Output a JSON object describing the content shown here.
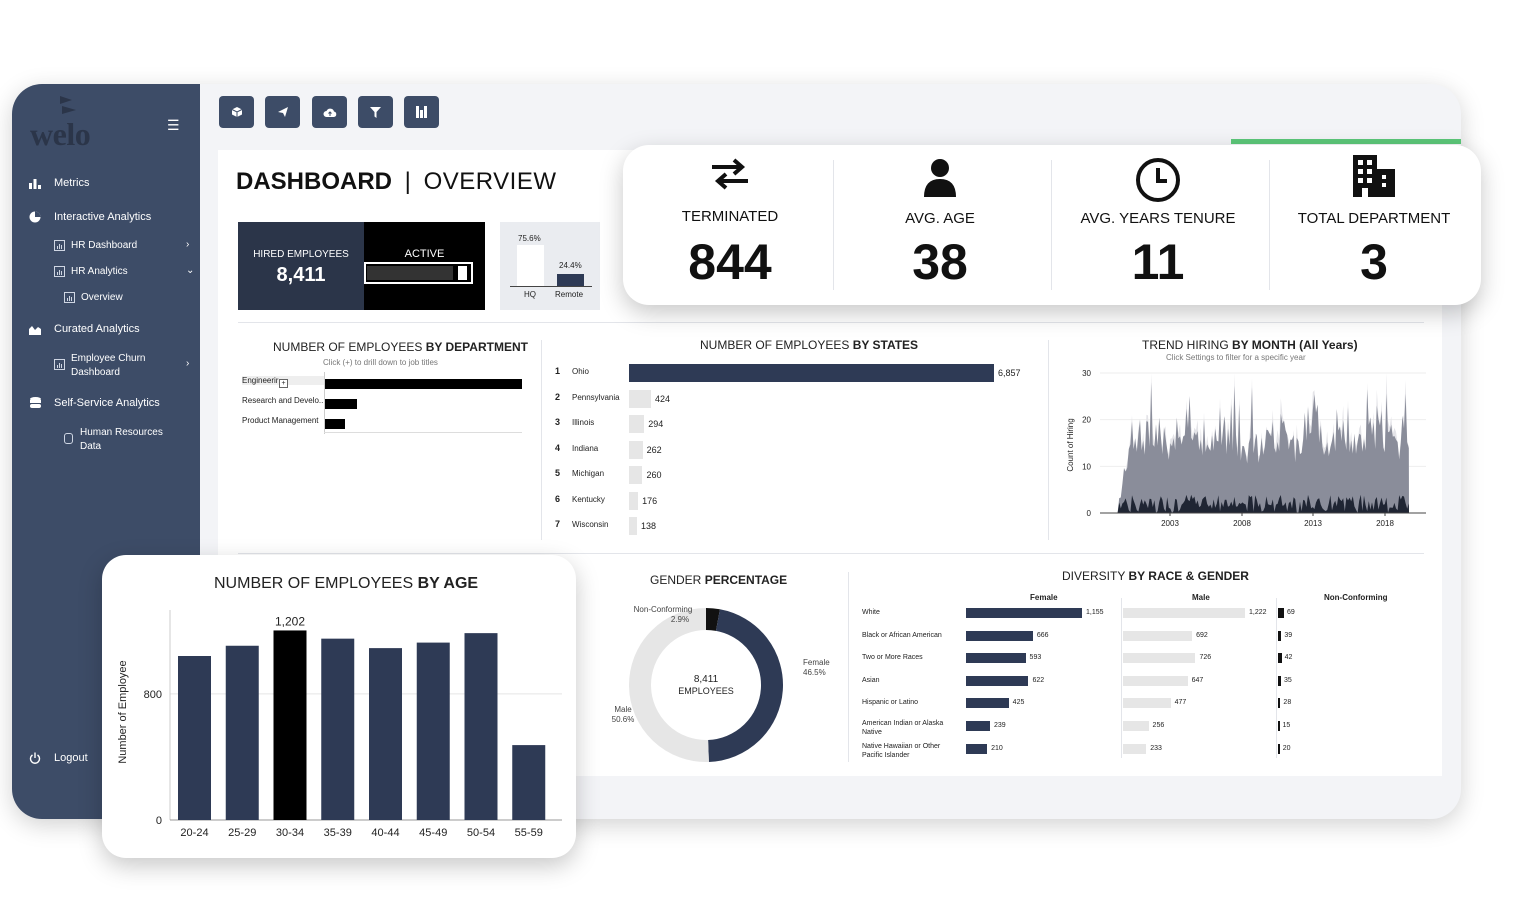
{
  "logo": {
    "text": "welo"
  },
  "toolbar": {
    "buttons": [
      "cube-icon",
      "send-icon",
      "cloud-icon",
      "filter-icon",
      "columns-icon"
    ]
  },
  "sidebar": {
    "items": [
      {
        "label": "Metrics",
        "icon": "bar-chart-icon"
      },
      {
        "label": "Interactive Analytics",
        "icon": "pie-chart-icon"
      },
      {
        "label": "HR Dashboard"
      },
      {
        "label": "HR Analytics"
      },
      {
        "label": "Overview"
      },
      {
        "label": "Curated Analytics",
        "icon": "area-chart-icon"
      },
      {
        "label": "Employee Churn",
        "label2": "Dashboard"
      },
      {
        "label": "Self-Service Analytics",
        "icon": "database-icon"
      },
      {
        "label": "Human Resources",
        "label2": "Data"
      }
    ],
    "logout": "Logout"
  },
  "dashboard": {
    "title": "DASHBOARD",
    "sep": "|",
    "subtitle": "OVERVIEW"
  },
  "hired": {
    "label": "HIRED EMPLOYEES",
    "value": "8,411",
    "active_label": "ACTIVE",
    "active_fraction": 0.95
  },
  "location": {
    "hq_pct": "75.6%",
    "remote_pct": "24.4%",
    "hq_label": "HQ",
    "remote_label": "Remote",
    "hq": 75.6,
    "remote": 24.4
  },
  "kpis": [
    {
      "label": "TERMINATED",
      "value": "844",
      "icon": "swap-arrows-icon"
    },
    {
      "label": "AVG. AGE",
      "value": "38",
      "icon": "person-icon"
    },
    {
      "label": "AVG. YEARS TENURE",
      "value": "11",
      "icon": "clock-icon"
    },
    {
      "label": "TOTAL DEPARTMENT",
      "value": "3",
      "icon": "building-icon"
    }
  ],
  "dept_chart": {
    "title_prefix": "NUMBER OF EMPLOYEES",
    "title_bold": "BY DEPARTMENT",
    "subtitle": "Click (+) to drill down to job titles",
    "rows": [
      {
        "label": "Engineering",
        "shown": "Engineerir",
        "frac": 1.0
      },
      {
        "label": "Research and Develo...",
        "shown": "Research and Develo...",
        "frac": 0.16
      },
      {
        "label": "Product Management",
        "shown": "Product Management",
        "frac": 0.1
      }
    ]
  },
  "states_chart": {
    "title_prefix": "NUMBER OF EMPLOYEES",
    "title_bold": "BY STATES",
    "rows": [
      {
        "rank": "1",
        "state": "Ohio",
        "value": 6857,
        "label": "6,857"
      },
      {
        "rank": "2",
        "state": "Pennsylvania",
        "value": 424,
        "label": "424"
      },
      {
        "rank": "3",
        "state": "Illinois",
        "value": 294,
        "label": "294"
      },
      {
        "rank": "4",
        "state": "Indiana",
        "value": 262,
        "label": "262"
      },
      {
        "rank": "5",
        "state": "Michigan",
        "value": 260,
        "label": "260"
      },
      {
        "rank": "6",
        "state": "Kentucky",
        "value": 176,
        "label": "176"
      },
      {
        "rank": "7",
        "state": "Wisconsin",
        "value": 138,
        "label": "138"
      }
    ]
  },
  "trend_chart": {
    "title_prefix": "TREND HIRING",
    "title_bold": "BY MONTH (All Years)",
    "subtitle": "Click Settings to filter for a specific year",
    "ylabel": "Count of Hiring",
    "yticks": [
      "30",
      "20",
      "10",
      "0"
    ],
    "xticks": [
      "2003",
      "2008",
      "2013",
      "2018"
    ]
  },
  "gender_chart": {
    "title_prefix": "GENDER",
    "title_bold": "PERCENTAGE",
    "center_value": "8,411",
    "center_label": "EMPLOYEES",
    "female_label": "Female",
    "female_pct": "46.5%",
    "female": 46.5,
    "male_label": "Male",
    "male_pct": "50.6%",
    "male": 50.6,
    "nc_label": "Non-Conforming",
    "nc_pct": "2.9%",
    "nc": 2.9
  },
  "diversity_chart": {
    "title_prefix": "DIVERSITY",
    "title_bold": "BY RACE & GENDER",
    "col_female": "Female",
    "col_male": "Male",
    "col_nc": "Non-Conforming",
    "rows": [
      {
        "race": "White",
        "race2": "",
        "female": 1155,
        "female_label": "1,155",
        "male": 1222,
        "male_label": "1,222",
        "nc": 69,
        "nc_label": "69"
      },
      {
        "race": "Black or African American",
        "race2": "",
        "female": 666,
        "female_label": "666",
        "male": 692,
        "male_label": "692",
        "nc": 39,
        "nc_label": "39"
      },
      {
        "race": "Two or More Races",
        "race2": "",
        "female": 593,
        "female_label": "593",
        "male": 726,
        "male_label": "726",
        "nc": 42,
        "nc_label": "42"
      },
      {
        "race": "Asian",
        "race2": "",
        "female": 622,
        "female_label": "622",
        "male": 647,
        "male_label": "647",
        "nc": 35,
        "nc_label": "35"
      },
      {
        "race": "Hispanic or Latino",
        "race2": "",
        "female": 425,
        "female_label": "425",
        "male": 477,
        "male_label": "477",
        "nc": 28,
        "nc_label": "28"
      },
      {
        "race": "American Indian or Alaska",
        "race2": "Native",
        "female": 239,
        "female_label": "239",
        "male": 256,
        "male_label": "256",
        "nc": 15,
        "nc_label": "15"
      },
      {
        "race": "Native Hawaiian or Other",
        "race2": "Pacific Islander",
        "female": 210,
        "female_label": "210",
        "male": 233,
        "male_label": "233",
        "nc": 20,
        "nc_label": "20"
      }
    ]
  },
  "chart_data": {
    "type": "bar",
    "title": "NUMBER OF EMPLOYEES BY AGE",
    "title_prefix": "NUMBER OF EMPLOYEES",
    "title_bold": "BY AGE",
    "ylabel": "Number of Employee",
    "categories": [
      "20-24",
      "25-29",
      "30-34",
      "35-39",
      "40-44",
      "45-49",
      "50-54",
      "55-59"
    ],
    "values": [
      1040,
      1105,
      1202,
      1150,
      1090,
      1125,
      1185,
      475
    ],
    "highlight_index": 2,
    "highlight_label": "1,202",
    "yticks": [
      0,
      800
    ],
    "ylim": [
      0,
      1300
    ]
  },
  "colors": {
    "navy": "#2e3a55",
    "sidebar": "#3d4c67",
    "accent_green": "#5cc779",
    "light_bar": "#e6e6e6"
  }
}
